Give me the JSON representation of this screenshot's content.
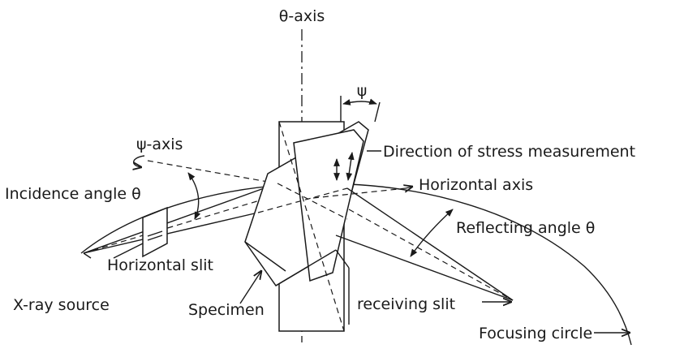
{
  "labels": {
    "theta_axis": "θ-axis",
    "psi": "ψ",
    "psi_axis": "ψ-axis",
    "direction_stress": "Direction of stress measurement",
    "incidence_angle": "Incidence angle θ",
    "horizontal_axis": "Horizontal axis",
    "reflecting_angle": "Reflecting angle θ",
    "horizontal_slit": "Horizontal slit",
    "xray_source": "X-ray source",
    "specimen": "Specimen",
    "receiving_slit": "receiving slit",
    "focusing_circle": "Focusing circle"
  }
}
